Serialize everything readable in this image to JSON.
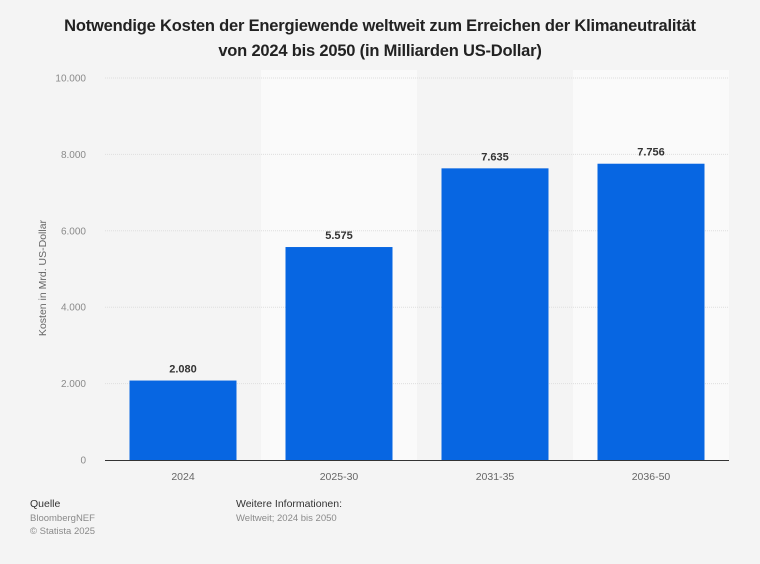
{
  "chart_data": {
    "type": "bar",
    "title": "Notwendige Kosten der Energiewende weltweit zum Erreichen der Klimaneutralität von 2024 bis 2050 (in Milliarden US-Dollar)",
    "title_lines": [
      "Notwendige Kosten der Energiewende weltweit zum Erreichen der Klimaneutralität",
      "von 2024 bis 2050 (in Milliarden US-Dollar)"
    ],
    "categories": [
      "2024",
      "2025-30",
      "2031-35",
      "2036-50"
    ],
    "values": [
      2080,
      5575,
      7635,
      7756
    ],
    "value_labels": [
      "2.080",
      "5.575",
      "7.635",
      "7.756"
    ],
    "xlabel": "",
    "ylabel": "Kosten in Mrd. US-Dollar",
    "ylim": [
      0,
      10000
    ],
    "yticks": [
      0,
      2000,
      4000,
      6000,
      8000,
      10000
    ],
    "ytick_labels": [
      "0",
      "2.000",
      "4.000",
      "6.000",
      "8.000",
      "10.000"
    ],
    "grid": true,
    "legend": "none",
    "bar_color": "#0766e2"
  },
  "footer": {
    "source_heading": "Quelle",
    "source_lines": [
      "BloombergNEF",
      "© Statista 2025"
    ],
    "info_heading": "Weitere Informationen:",
    "info_text": "Weltweit; 2024 bis 2050"
  }
}
